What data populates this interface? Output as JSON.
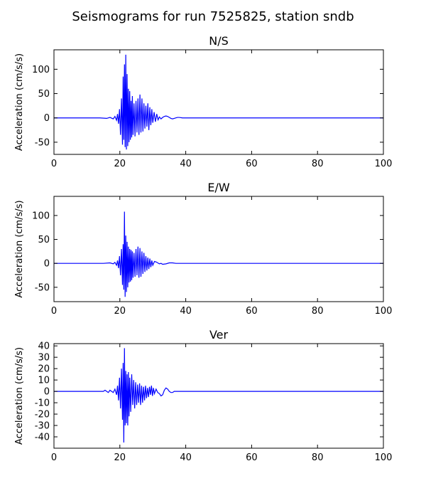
{
  "title": "Seismograms for run 7525825, station sndb",
  "chart_data": [
    {
      "type": "line",
      "title": "N/S",
      "xlabel": "",
      "ylabel": "Acceleration (cm/s/s)",
      "xlim": [
        0,
        100
      ],
      "ylim": [
        -75,
        140
      ],
      "xticks": [
        0,
        20,
        40,
        60,
        80,
        100
      ],
      "yticks": [
        -50,
        0,
        50,
        100
      ],
      "grid": false,
      "color": "#0000ff",
      "series": [
        {
          "x": [
            0,
            5,
            10,
            14,
            16,
            17,
            18,
            18.5,
            19,
            19.3,
            19.6,
            19.9,
            20.2,
            20.5,
            20.8,
            21.0,
            21.2,
            21.4,
            21.6,
            21.8,
            22.0,
            22.2,
            22.4,
            22.6,
            22.8,
            23.0,
            23.2,
            23.4,
            23.6,
            23.8,
            24.0,
            24.3,
            24.6,
            24.9,
            25.2,
            25.5,
            25.8,
            26.1,
            26.4,
            26.7,
            27.0,
            27.3,
            27.6,
            27.9,
            28.2,
            28.5,
            28.8,
            29.1,
            29.4,
            29.7,
            30.0,
            30.4,
            30.8,
            31.2,
            31.6,
            32.0,
            32.5,
            33.0,
            33.5,
            34.0,
            34.5,
            35.0,
            35.5,
            36.0,
            36.5,
            37.0,
            37.5,
            38.0,
            39,
            40,
            45,
            50,
            60,
            70,
            80,
            90,
            100
          ],
          "y": [
            0,
            0,
            0,
            0,
            -1,
            1,
            -2,
            3,
            -5,
            8,
            -12,
            18,
            -35,
            40,
            -55,
            85,
            -45,
            110,
            -60,
            130,
            -65,
            90,
            -58,
            60,
            -50,
            55,
            -45,
            35,
            -40,
            45,
            -35,
            30,
            -38,
            35,
            -30,
            40,
            -35,
            48,
            -30,
            40,
            -28,
            30,
            -22,
            25,
            -18,
            30,
            -25,
            22,
            -15,
            18,
            -10,
            12,
            -8,
            8,
            -4,
            2,
            -2,
            1,
            3,
            4,
            3,
            1,
            -1,
            -2,
            -1,
            0,
            1,
            1,
            0,
            0,
            0,
            0,
            0,
            0,
            0,
            0,
            0
          ]
        }
      ]
    },
    {
      "type": "line",
      "title": "E/W",
      "xlabel": "",
      "ylabel": "Acceleration (cm/s/s)",
      "xlim": [
        0,
        100
      ],
      "ylim": [
        -80,
        140
      ],
      "xticks": [
        0,
        20,
        40,
        60,
        80,
        100
      ],
      "yticks": [
        -50,
        0,
        50,
        100
      ],
      "grid": false,
      "color": "#0000ff",
      "series": [
        {
          "x": [
            0,
            5,
            10,
            15,
            17,
            18,
            18.5,
            19,
            19.3,
            19.6,
            19.9,
            20.2,
            20.5,
            20.8,
            21.0,
            21.2,
            21.4,
            21.6,
            21.8,
            22.0,
            22.2,
            22.4,
            22.6,
            22.8,
            23.0,
            23.2,
            23.4,
            23.6,
            23.8,
            24.0,
            24.3,
            24.6,
            24.9,
            25.2,
            25.5,
            25.8,
            26.1,
            26.4,
            26.7,
            27.0,
            27.3,
            27.6,
            27.9,
            28.2,
            28.5,
            28.8,
            29.1,
            29.4,
            29.7,
            30.0,
            30.5,
            31.0,
            31.5,
            32.0,
            32.5,
            33.0,
            34,
            35,
            36,
            37,
            38,
            40,
            45,
            50,
            60,
            70,
            80,
            90,
            100
          ],
          "y": [
            0,
            0,
            0,
            0,
            1,
            -1,
            2,
            -4,
            6,
            -10,
            15,
            -25,
            30,
            -45,
            40,
            -55,
            108,
            -70,
            58,
            -60,
            45,
            -50,
            35,
            -40,
            30,
            -38,
            28,
            -35,
            25,
            -30,
            22,
            -28,
            30,
            -25,
            35,
            -30,
            32,
            -28,
            25,
            -22,
            22,
            -18,
            15,
            -15,
            12,
            -12,
            10,
            -8,
            6,
            -4,
            4,
            3,
            1,
            -1,
            0,
            -2,
            -1,
            1,
            1,
            0,
            0,
            0,
            0,
            0,
            0,
            0,
            0,
            0,
            0
          ]
        }
      ]
    },
    {
      "type": "line",
      "title": "Ver",
      "xlabel": "",
      "ylabel": "Acceleration (cm/s/s)",
      "xlim": [
        0,
        100
      ],
      "ylim": [
        -50,
        42
      ],
      "xticks": [
        0,
        20,
        40,
        60,
        80,
        100
      ],
      "yticks": [
        -40,
        -30,
        -20,
        -10,
        0,
        10,
        20,
        30,
        40
      ],
      "grid": false,
      "color": "#0000ff",
      "series": [
        {
          "x": [
            0,
            5,
            10,
            13,
            14,
            15,
            15.5,
            16,
            16.5,
            17,
            17.5,
            18,
            18.5,
            19,
            19.3,
            19.6,
            19.9,
            20.2,
            20.5,
            20.8,
            21.0,
            21.2,
            21.4,
            21.6,
            21.8,
            22.0,
            22.2,
            22.4,
            22.6,
            22.8,
            23.0,
            23.3,
            23.6,
            23.9,
            24.2,
            24.5,
            24.8,
            25.1,
            25.4,
            25.7,
            26.0,
            26.3,
            26.6,
            26.9,
            27.2,
            27.5,
            27.8,
            28.1,
            28.4,
            28.7,
            29.0,
            29.3,
            29.6,
            29.9,
            30.2,
            30.5,
            31.0,
            31.5,
            32.0,
            32.5,
            33.0,
            33.5,
            34.0,
            34.5,
            35.0,
            35.5,
            36.0,
            36.5,
            37.0,
            38,
            39,
            40,
            41,
            42,
            45,
            50,
            60,
            70,
            80,
            90,
            100
          ],
          "y": [
            0,
            0,
            0,
            0,
            0,
            0,
            1,
            0,
            -1,
            1,
            0,
            -1,
            2,
            -3,
            5,
            -8,
            12,
            -15,
            20,
            -25,
            25,
            -45,
            38,
            -30,
            18,
            -28,
            15,
            -30,
            17,
            -22,
            12,
            -18,
            15,
            -12,
            10,
            -15,
            8,
            -12,
            6,
            -10,
            7,
            -12,
            5,
            -10,
            4,
            -8,
            5,
            -6,
            3,
            -5,
            4,
            -3,
            5,
            -4,
            3,
            -2,
            2,
            -1,
            -2,
            -4,
            -3,
            1,
            3,
            2,
            0,
            -1,
            -1,
            0,
            0,
            0,
            0,
            0,
            0,
            0,
            0,
            0,
            0,
            0,
            0,
            0,
            0
          ]
        }
      ]
    }
  ]
}
